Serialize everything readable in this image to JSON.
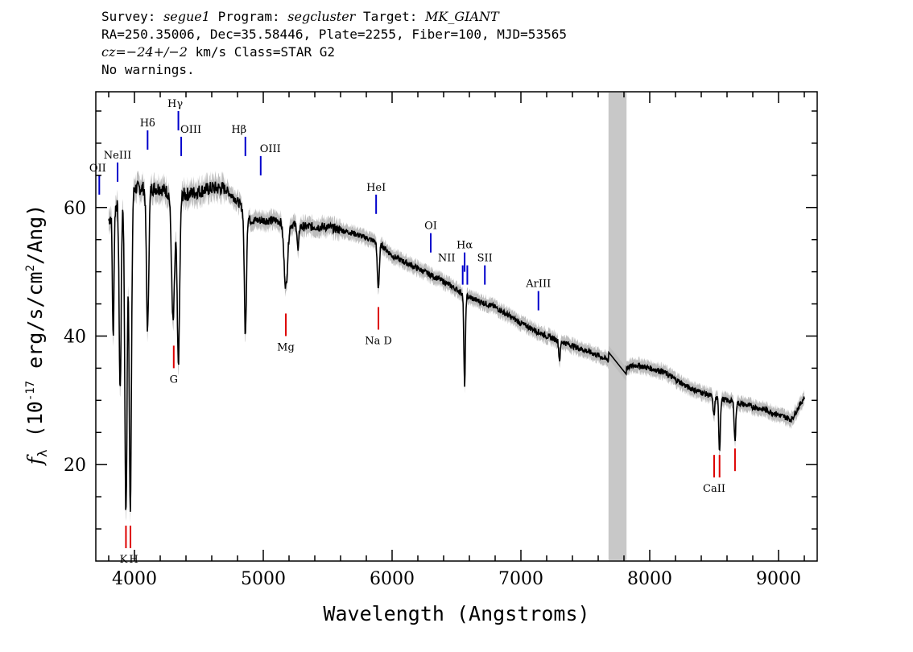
{
  "header": {
    "line1": [
      {
        "t": "Survey: ",
        "i": false
      },
      {
        "t": "segue1",
        "i": true
      },
      {
        "t": " Program: ",
        "i": false
      },
      {
        "t": "segcluster",
        "i": true
      },
      {
        "t": " Target: ",
        "i": false
      },
      {
        "t": "MK_GIANT",
        "i": true
      }
    ],
    "line2": "RA=250.35006, Dec=35.58446, Plate=2255, Fiber=100, MJD=53565",
    "line3": [
      {
        "t": "cz=",
        "i": true
      },
      {
        "t": "−24+/−2",
        "i": true
      },
      {
        "t": " km/s Class=STAR G2",
        "i": false
      }
    ],
    "line4": "No warnings."
  },
  "chart_data": {
    "type": "line",
    "xlabel": "Wavelength (Angstroms)",
    "ylabel_parts": {
      "f": "f",
      "sub": "λ",
      "pre": " (10",
      "exp": "-17",
      "mid": " erg/s/cm",
      "exp2": "2",
      "post": "/Ang)"
    },
    "xlim": [
      3700,
      9300
    ],
    "ylim": [
      5,
      78
    ],
    "x_ticks": [
      4000,
      5000,
      6000,
      7000,
      8000,
      9000
    ],
    "y_ticks": [
      20,
      40,
      60
    ],
    "masked_region": [
      7680,
      7820
    ],
    "colors": {
      "flux": "#000000",
      "error": "#bdbdbd",
      "emission": "#0000cc",
      "absorption": "#dd0000",
      "mask": "#c8c8c8"
    },
    "continuum": [
      [
        3800,
        58
      ],
      [
        3900,
        62
      ],
      [
        4000,
        63
      ],
      [
        4100,
        63
      ],
      [
        4200,
        63
      ],
      [
        4300,
        62
      ],
      [
        4400,
        62
      ],
      [
        4500,
        62.5
      ],
      [
        4600,
        63
      ],
      [
        4700,
        63
      ],
      [
        4800,
        61
      ],
      [
        4900,
        58
      ],
      [
        5000,
        58
      ],
      [
        5100,
        58
      ],
      [
        5300,
        57
      ],
      [
        5500,
        57
      ],
      [
        5700,
        56
      ],
      [
        5900,
        54.5
      ],
      [
        6000,
        52.5
      ],
      [
        6200,
        50.5
      ],
      [
        6400,
        48.5
      ],
      [
        6600,
        46
      ],
      [
        6800,
        44.5
      ],
      [
        7000,
        42
      ],
      [
        7200,
        40
      ],
      [
        7400,
        38.5
      ],
      [
        7600,
        37
      ],
      [
        7700,
        36
      ],
      [
        7800,
        35
      ],
      [
        7900,
        35.5
      ],
      [
        8100,
        34.5
      ],
      [
        8300,
        32
      ],
      [
        8500,
        30.5
      ],
      [
        8700,
        29.5
      ],
      [
        8900,
        28.5
      ],
      [
        9100,
        27
      ],
      [
        9200,
        30.5
      ]
    ],
    "absorption_features": [
      {
        "x": 3835,
        "depth": 20,
        "w": 6
      },
      {
        "x": 3889,
        "depth": 30,
        "w": 8
      },
      {
        "x": 3934,
        "depth": 50,
        "w": 9
      },
      {
        "x": 3968,
        "depth": 49,
        "w": 9
      },
      {
        "x": 4102,
        "depth": 22,
        "w": 9
      },
      {
        "x": 4300,
        "depth": 20,
        "w": 12
      },
      {
        "x": 4341,
        "depth": 26,
        "w": 10
      },
      {
        "x": 4861,
        "depth": 19,
        "w": 8
      },
      {
        "x": 5175,
        "depth": 10,
        "w": 14
      },
      {
        "x": 5270,
        "depth": 4,
        "w": 6
      },
      {
        "x": 5893,
        "depth": 7,
        "w": 8
      },
      {
        "x": 6563,
        "depth": 14,
        "w": 6
      },
      {
        "x": 7300,
        "depth": 3,
        "w": 6
      },
      {
        "x": 8498,
        "depth": 3,
        "w": 6
      },
      {
        "x": 8542,
        "depth": 8,
        "w": 6
      },
      {
        "x": 8662,
        "depth": 6,
        "w": 6
      }
    ],
    "emission_lines": [
      {
        "label": "OII",
        "x": 3727,
        "y": 65
      },
      {
        "label": "NeIII",
        "x": 3869,
        "y": 67
      },
      {
        "label": "Hδ",
        "x": 4102,
        "y": 72
      },
      {
        "label": "Hγ",
        "x": 4341,
        "y": 75
      },
      {
        "label": "OIII",
        "x": 4363,
        "y": 71
      },
      {
        "label": "Hβ",
        "x": 4861,
        "y": 71
      },
      {
        "label": "OIII",
        "x": 4980,
        "y": 68
      },
      {
        "label": "HeI",
        "x": 5876,
        "y": 62
      },
      {
        "label": "OI",
        "x": 6300,
        "y": 56
      },
      {
        "label": "NII",
        "x": 6548,
        "y": 51
      },
      {
        "label": "Hα",
        "x": 6563,
        "y": 53
      },
      {
        "label": "NII",
        "x": 6584,
        "y": 51
      },
      {
        "label": "SII",
        "x": 6720,
        "y": 51
      },
      {
        "label": "ArIII",
        "x": 7136,
        "y": 47
      }
    ],
    "absorption_lines": [
      {
        "label": "K",
        "x": 3934,
        "y": 7
      },
      {
        "label": "H",
        "x": 3969,
        "y": 7
      },
      {
        "label": "G",
        "x": 4305,
        "y": 35
      },
      {
        "label": "Mg",
        "x": 5175,
        "y": 40
      },
      {
        "label": "Na D",
        "x": 5894,
        "y": 41
      },
      {
        "label": "CaII",
        "x": 8500,
        "y": 18
      },
      {
        "label": "CaII",
        "x": 8542,
        "y": 18
      },
      {
        "label": "CaII",
        "x": 8662,
        "y": 19
      }
    ]
  }
}
